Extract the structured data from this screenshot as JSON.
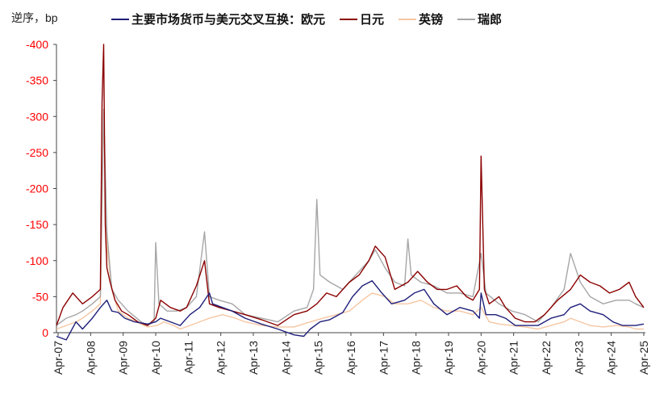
{
  "chart_data": {
    "type": "line",
    "ylabel": "逆序，bp",
    "ylim": [
      0,
      -400
    ],
    "y_ticks": [
      "-400",
      "-350",
      "-300",
      "-250",
      "-200",
      "-150",
      "-100",
      "-50",
      "0"
    ],
    "y_tick_values": [
      -400,
      -350,
      -300,
      -250,
      -200,
      -150,
      -100,
      -50,
      0
    ],
    "x_ticks": [
      "Apr-07",
      "Apr-08",
      "Apr-09",
      "Apr-10",
      "Apr-11",
      "Apr-12",
      "Apr-13",
      "Apr-14",
      "Apr-15",
      "Apr-16",
      "Apr-17",
      "Apr-18",
      "Apr-19",
      "Apr-20",
      "Apr-21",
      "Apr-22",
      "Apr-23",
      "Apr-24",
      "Apr-25"
    ],
    "x_tick_values": [
      2007.25,
      2008.25,
      2009.25,
      2010.25,
      2011.25,
      2012.25,
      2013.25,
      2014.25,
      2015.25,
      2016.25,
      2017.25,
      2018.25,
      2019.25,
      2020.25,
      2021.25,
      2022.25,
      2023.25,
      2024.25,
      2025.25
    ],
    "x_range": [
      2007.2,
      2025.3
    ],
    "legend_placement": "top",
    "series": [
      {
        "name": "主要市场货币与美元交叉互换：欧元",
        "color": "#1f1f7a",
        "x": [
          2007.2,
          2007.5,
          2007.8,
          2008.0,
          2008.3,
          2008.55,
          2008.75,
          2008.9,
          2009.1,
          2009.3,
          2009.6,
          2010.0,
          2010.25,
          2010.4,
          2010.7,
          2011.0,
          2011.3,
          2011.6,
          2011.9,
          2012.0,
          2012.3,
          2012.6,
          2013.0,
          2013.5,
          2014.0,
          2014.5,
          2014.8,
          2015.0,
          2015.3,
          2015.6,
          2016.0,
          2016.3,
          2016.6,
          2016.9,
          2017.2,
          2017.5,
          2017.9,
          2018.2,
          2018.5,
          2018.8,
          2019.2,
          2019.6,
          2020.0,
          2020.2,
          2020.25,
          2020.4,
          2020.7,
          2021.0,
          2021.3,
          2021.6,
          2022.0,
          2022.4,
          2022.8,
          2023.0,
          2023.3,
          2023.6,
          2024.0,
          2024.3,
          2024.6,
          2025.0,
          2025.25
        ],
        "values": [
          5,
          10,
          -15,
          -5,
          -20,
          -35,
          -45,
          -30,
          -28,
          -20,
          -15,
          -12,
          -15,
          -20,
          -15,
          -10,
          -25,
          -35,
          -55,
          -40,
          -35,
          -30,
          -20,
          -12,
          -5,
          3,
          5,
          -5,
          -15,
          -18,
          -28,
          -50,
          -65,
          -72,
          -55,
          -40,
          -45,
          -55,
          -60,
          -40,
          -25,
          -35,
          -30,
          -20,
          -55,
          -25,
          -25,
          -20,
          -10,
          -10,
          -10,
          -20,
          -25,
          -35,
          -40,
          -30,
          -25,
          -15,
          -10,
          -10,
          -12
        ]
      },
      {
        "name": "日元",
        "color": "#8b0000",
        "x": [
          2007.2,
          2007.4,
          2007.7,
          2008.0,
          2008.3,
          2008.55,
          2008.6,
          2008.65,
          2008.7,
          2008.75,
          2008.85,
          2009.0,
          2009.2,
          2009.4,
          2009.7,
          2010.0,
          2010.25,
          2010.4,
          2010.7,
          2011.0,
          2011.2,
          2011.5,
          2011.75,
          2011.9,
          2012.2,
          2012.6,
          2013.0,
          2013.5,
          2014.0,
          2014.5,
          2014.9,
          2015.2,
          2015.5,
          2015.8,
          2016.2,
          2016.5,
          2016.8,
          2017.0,
          2017.3,
          2017.6,
          2018.0,
          2018.3,
          2018.6,
          2018.9,
          2019.2,
          2019.5,
          2019.8,
          2020.0,
          2020.2,
          2020.25,
          2020.35,
          2020.5,
          2020.8,
          2021.0,
          2021.3,
          2021.6,
          2021.9,
          2022.2,
          2022.6,
          2023.0,
          2023.3,
          2023.6,
          2023.9,
          2024.2,
          2024.5,
          2024.8,
          2025.0,
          2025.25
        ],
        "values": [
          -10,
          -35,
          -55,
          -40,
          -50,
          -60,
          -320,
          -400,
          -150,
          -90,
          -70,
          -45,
          -30,
          -25,
          -15,
          -10,
          -20,
          -45,
          -35,
          -30,
          -35,
          -65,
          -100,
          -40,
          -35,
          -30,
          -25,
          -18,
          -10,
          -25,
          -30,
          -40,
          -55,
          -50,
          -70,
          -80,
          -100,
          -120,
          -105,
          -60,
          -70,
          -85,
          -70,
          -60,
          -60,
          -65,
          -50,
          -45,
          -60,
          -245,
          -60,
          -40,
          -50,
          -35,
          -20,
          -15,
          -15,
          -25,
          -45,
          -60,
          -80,
          -70,
          -65,
          -55,
          -60,
          -70,
          -50,
          -35
        ]
      },
      {
        "name": "英镑",
        "color": "#f6c6a2",
        "x": [
          2007.2,
          2007.5,
          2007.8,
          2008.0,
          2008.3,
          2008.55,
          2008.65,
          2008.75,
          2008.9,
          2009.1,
          2009.4,
          2009.8,
          2010.0,
          2010.3,
          2010.5,
          2010.8,
          2011.0,
          2011.3,
          2011.6,
          2011.9,
          2012.3,
          2012.7,
          2013.0,
          2013.5,
          2014.0,
          2014.5,
          2015.0,
          2015.4,
          2015.8,
          2016.2,
          2016.6,
          2016.9,
          2017.3,
          2017.6,
          2018.0,
          2018.4,
          2018.8,
          2019.2,
          2019.6,
          2020.0,
          2020.25,
          2020.5,
          2020.8,
          2021.2,
          2021.6,
          2022.0,
          2022.4,
          2022.8,
          2023.0,
          2023.3,
          2023.6,
          2024.0,
          2024.4,
          2024.8,
          2025.0,
          2025.25
        ],
        "values": [
          -5,
          -10,
          -15,
          -20,
          -30,
          -40,
          -300,
          -120,
          -60,
          -30,
          -20,
          -12,
          -8,
          -10,
          -15,
          -10,
          -5,
          -10,
          -15,
          -20,
          -25,
          -20,
          -15,
          -10,
          -8,
          -8,
          -15,
          -20,
          -25,
          -30,
          -45,
          -55,
          -50,
          -40,
          -40,
          -45,
          -35,
          -30,
          -30,
          -25,
          -35,
          -15,
          -12,
          -10,
          -8,
          -5,
          -10,
          -15,
          -20,
          -15,
          -10,
          -8,
          -10,
          -8,
          -5,
          -5
        ]
      },
      {
        "name": "瑞郎",
        "color": "#a6a6a6",
        "x": [
          2007.2,
          2007.5,
          2007.8,
          2008.0,
          2008.3,
          2008.55,
          2008.65,
          2008.75,
          2008.9,
          2009.1,
          2009.4,
          2009.8,
          2010.0,
          2010.2,
          2010.25,
          2010.35,
          2010.6,
          2010.9,
          2011.2,
          2011.5,
          2011.75,
          2011.9,
          2012.2,
          2012.6,
          2013.0,
          2013.5,
          2014.0,
          2014.5,
          2014.9,
          2015.1,
          2015.2,
          2015.3,
          2015.6,
          2016.0,
          2016.4,
          2016.8,
          2017.0,
          2017.3,
          2017.6,
          2017.9,
          2018.0,
          2018.1,
          2018.4,
          2018.8,
          2019.2,
          2019.6,
          2020.0,
          2020.25,
          2020.4,
          2020.8,
          2021.2,
          2021.6,
          2022.0,
          2022.4,
          2022.8,
          2023.0,
          2023.3,
          2023.6,
          2024.0,
          2024.4,
          2024.8,
          2025.0,
          2025.25
        ],
        "values": [
          -10,
          -20,
          -25,
          -30,
          -40,
          -50,
          -310,
          -140,
          -60,
          -45,
          -30,
          -15,
          -10,
          -15,
          -125,
          -40,
          -30,
          -30,
          -35,
          -50,
          -140,
          -50,
          -45,
          -40,
          -25,
          -20,
          -15,
          -30,
          -35,
          -60,
          -185,
          -80,
          -70,
          -60,
          -80,
          -100,
          -115,
          -90,
          -70,
          -65,
          -130,
          -80,
          -70,
          -65,
          -55,
          -55,
          -50,
          -110,
          -55,
          -40,
          -30,
          -25,
          -15,
          -35,
          -60,
          -110,
          -70,
          -50,
          -40,
          -45,
          -45,
          -40,
          -35
        ]
      }
    ]
  }
}
